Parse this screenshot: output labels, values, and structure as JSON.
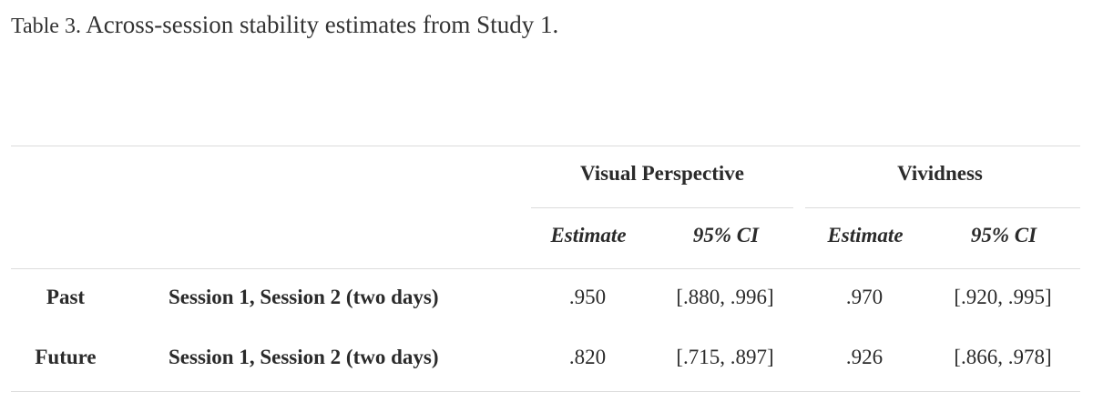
{
  "caption": {
    "label": "Table 3.",
    "title": "Across-session stability estimates from Study 1."
  },
  "header": {
    "groups": [
      "Visual Perspective",
      "Vividness"
    ],
    "subheaders": [
      "Estimate",
      "95% CI",
      "Estimate",
      "95% CI"
    ]
  },
  "rows": [
    {
      "label": "Past",
      "sessions": "Session 1, Session 2 (two days)",
      "vp_estimate": ".950",
      "vp_ci": "[.880, .996]",
      "viv_estimate": ".970",
      "viv_ci": "[.920, .995]"
    },
    {
      "label": "Future",
      "sessions": "Session 1, Session 2 (two days)",
      "vp_estimate": ".820",
      "vp_ci": "[.715, .897]",
      "viv_estimate": ".926",
      "viv_ci": "[.866, .978]"
    }
  ]
}
